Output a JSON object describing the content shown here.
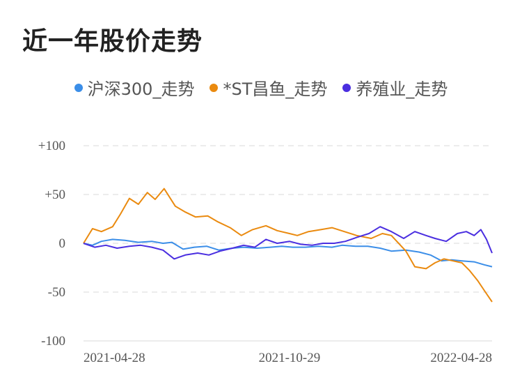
{
  "title": "近一年股价走势",
  "colors": {
    "background": "#ffffff",
    "grid": "#e6e6e6",
    "axis_text": "#555555",
    "title": "#222222"
  },
  "chart_data": {
    "type": "line",
    "title": "近一年股价走势",
    "xlabel": "",
    "ylabel": "",
    "ylim": [
      -100,
      100
    ],
    "xlim": [
      "2021-04-28",
      "2022-04-28"
    ],
    "grid": true,
    "legend_position": "top-center",
    "y_ticks": [
      {
        "value": 100,
        "label": "+100"
      },
      {
        "value": 50,
        "label": "+50"
      },
      {
        "value": 0,
        "label": "0"
      },
      {
        "value": -50,
        "label": "-50"
      },
      {
        "value": -100,
        "label": "-100"
      }
    ],
    "x_ticks": [
      {
        "x": "2021-04-28",
        "label": "2021-04-28"
      },
      {
        "x": "2021-10-29",
        "label": "2021-10-29"
      },
      {
        "x": "2022-04-28",
        "label": "2022-04-28"
      }
    ],
    "series": [
      {
        "name": "沪深300_走势",
        "color": "#3b8ee8",
        "points": [
          [
            "2021-04-28",
            0
          ],
          [
            "2021-05-06",
            -2
          ],
          [
            "2021-05-14",
            2
          ],
          [
            "2021-05-24",
            4
          ],
          [
            "2021-06-04",
            3
          ],
          [
            "2021-06-16",
            1
          ],
          [
            "2021-06-28",
            2
          ],
          [
            "2021-07-08",
            0
          ],
          [
            "2021-07-16",
            1
          ],
          [
            "2021-07-26",
            -6
          ],
          [
            "2021-08-05",
            -4
          ],
          [
            "2021-08-16",
            -3
          ],
          [
            "2021-08-27",
            -7
          ],
          [
            "2021-09-08",
            -5
          ],
          [
            "2021-09-18",
            -4
          ],
          [
            "2021-09-30",
            -5
          ],
          [
            "2021-10-12",
            -4
          ],
          [
            "2021-10-22",
            -3
          ],
          [
            "2021-11-01",
            -4
          ],
          [
            "2021-11-12",
            -4
          ],
          [
            "2021-11-24",
            -3
          ],
          [
            "2021-12-06",
            -4
          ],
          [
            "2021-12-15",
            -2
          ],
          [
            "2021-12-27",
            -3
          ],
          [
            "2022-01-07",
            -3
          ],
          [
            "2022-01-18",
            -5
          ],
          [
            "2022-01-28",
            -8
          ],
          [
            "2022-02-10",
            -7
          ],
          [
            "2022-02-22",
            -9
          ],
          [
            "2022-03-04",
            -12
          ],
          [
            "2022-03-14",
            -18
          ],
          [
            "2022-03-23",
            -17
          ],
          [
            "2022-04-01",
            -18
          ],
          [
            "2022-04-12",
            -19
          ],
          [
            "2022-04-21",
            -22
          ],
          [
            "2022-04-28",
            -24
          ]
        ]
      },
      {
        "name": "*ST昌鱼_走势",
        "color": "#ea8a0f",
        "points": [
          [
            "2021-04-28",
            0
          ],
          [
            "2021-05-06",
            15
          ],
          [
            "2021-05-14",
            12
          ],
          [
            "2021-05-24",
            17
          ],
          [
            "2021-05-31",
            30
          ],
          [
            "2021-06-08",
            46
          ],
          [
            "2021-06-16",
            40
          ],
          [
            "2021-06-24",
            52
          ],
          [
            "2021-07-01",
            45
          ],
          [
            "2021-07-09",
            56
          ],
          [
            "2021-07-19",
            38
          ],
          [
            "2021-07-28",
            32
          ],
          [
            "2021-08-06",
            27
          ],
          [
            "2021-08-17",
            28
          ],
          [
            "2021-08-26",
            22
          ],
          [
            "2021-09-06",
            16
          ],
          [
            "2021-09-16",
            8
          ],
          [
            "2021-09-26",
            14
          ],
          [
            "2021-10-08",
            18
          ],
          [
            "2021-10-18",
            13
          ],
          [
            "2021-10-29",
            10
          ],
          [
            "2021-11-05",
            8
          ],
          [
            "2021-11-15",
            12
          ],
          [
            "2021-11-26",
            14
          ],
          [
            "2021-12-06",
            16
          ],
          [
            "2021-12-17",
            12
          ],
          [
            "2021-12-28",
            8
          ],
          [
            "2022-01-10",
            5
          ],
          [
            "2022-01-20",
            10
          ],
          [
            "2022-01-28",
            8
          ],
          [
            "2022-02-10",
            -8
          ],
          [
            "2022-02-18",
            -24
          ],
          [
            "2022-02-28",
            -26
          ],
          [
            "2022-03-08",
            -20
          ],
          [
            "2022-03-16",
            -16
          ],
          [
            "2022-03-24",
            -18
          ],
          [
            "2022-04-01",
            -20
          ],
          [
            "2022-04-08",
            -28
          ],
          [
            "2022-04-15",
            -38
          ],
          [
            "2022-04-22",
            -50
          ],
          [
            "2022-04-28",
            -60
          ]
        ]
      },
      {
        "name": "养殖业_走势",
        "color": "#4a2ee0",
        "points": [
          [
            "2021-04-28",
            0
          ],
          [
            "2021-05-08",
            -4
          ],
          [
            "2021-05-18",
            -2
          ],
          [
            "2021-05-28",
            -5
          ],
          [
            "2021-06-08",
            -3
          ],
          [
            "2021-06-18",
            -2
          ],
          [
            "2021-06-28",
            -4
          ],
          [
            "2021-07-08",
            -7
          ],
          [
            "2021-07-18",
            -16
          ],
          [
            "2021-07-28",
            -12
          ],
          [
            "2021-08-08",
            -10
          ],
          [
            "2021-08-18",
            -12
          ],
          [
            "2021-08-28",
            -8
          ],
          [
            "2021-09-08",
            -5
          ],
          [
            "2021-09-18",
            -2
          ],
          [
            "2021-09-28",
            -4
          ],
          [
            "2021-10-08",
            4
          ],
          [
            "2021-10-18",
            0
          ],
          [
            "2021-10-29",
            2
          ],
          [
            "2021-11-08",
            -1
          ],
          [
            "2021-11-18",
            -2
          ],
          [
            "2021-11-28",
            0
          ],
          [
            "2021-12-08",
            0
          ],
          [
            "2021-12-18",
            2
          ],
          [
            "2021-12-28",
            6
          ],
          [
            "2022-01-08",
            10
          ],
          [
            "2022-01-18",
            17
          ],
          [
            "2022-01-28",
            12
          ],
          [
            "2022-02-08",
            5
          ],
          [
            "2022-02-18",
            12
          ],
          [
            "2022-02-28",
            8
          ],
          [
            "2022-03-08",
            5
          ],
          [
            "2022-03-18",
            2
          ],
          [
            "2022-03-28",
            10
          ],
          [
            "2022-04-05",
            12
          ],
          [
            "2022-04-12",
            8
          ],
          [
            "2022-04-18",
            14
          ],
          [
            "2022-04-23",
            4
          ],
          [
            "2022-04-28",
            -10
          ]
        ]
      }
    ]
  }
}
